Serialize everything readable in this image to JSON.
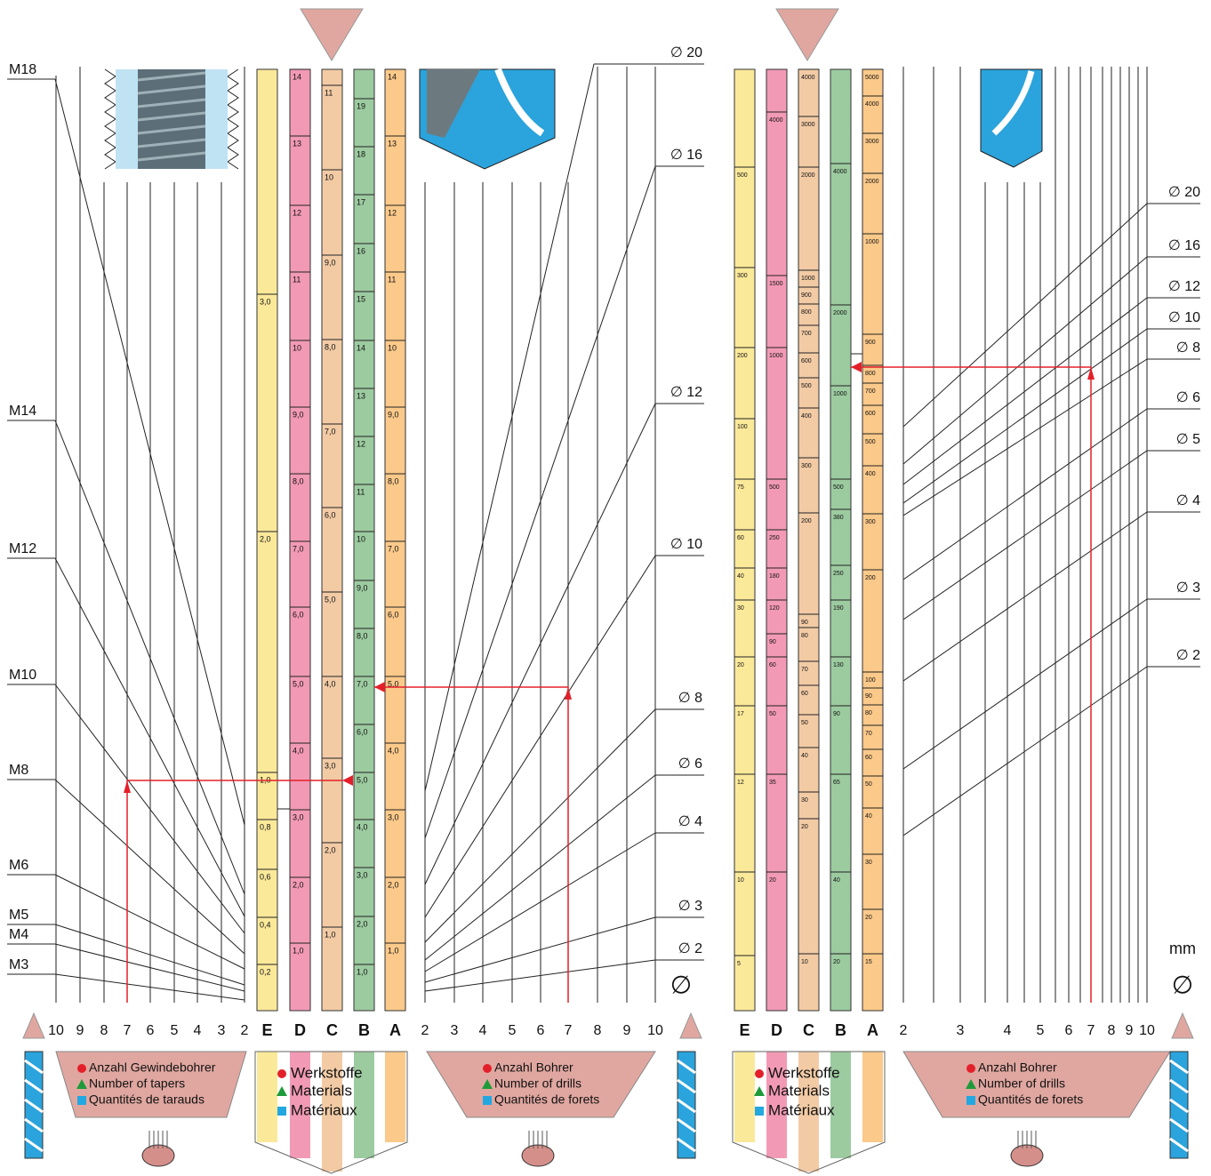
{
  "left": {
    "threads": [
      "M18",
      "M14",
      "M12",
      "M10",
      "M8",
      "M6",
      "M5",
      "M4",
      "M3"
    ],
    "scale_left": [
      "10",
      "9",
      "8",
      "7",
      "6",
      "5",
      "4",
      "3",
      "2"
    ],
    "columns": [
      {
        "letter": "E",
        "ticks": [
          "3,0",
          "2,0",
          "1,0",
          "0,8",
          "0,6",
          "0,4",
          "0,2"
        ]
      },
      {
        "letter": "D",
        "ticks": [
          "14",
          "13",
          "12",
          "11",
          "10",
          "9,0",
          "8,0",
          "7,0",
          "6,0",
          "5,0",
          "4,0",
          "3,0",
          "2,0",
          "1,0"
        ]
      },
      {
        "letter": "C",
        "ticks": [
          "11",
          "10",
          "9,0",
          "8,0",
          "7,0",
          "6,0",
          "5,0",
          "4,0",
          "3,0",
          "2,0",
          "1,0"
        ]
      },
      {
        "letter": "B",
        "ticks": [
          "19",
          "18",
          "17",
          "16",
          "15",
          "14",
          "13",
          "12",
          "11",
          "10",
          "9,0",
          "8,0",
          "7,0",
          "6,0",
          "5,0",
          "4,0",
          "3,0",
          "2,0",
          "1,0"
        ]
      },
      {
        "letter": "A",
        "ticks": [
          "14",
          "13",
          "12",
          "11",
          "10",
          "9,0",
          "8,0",
          "7,0",
          "6,0",
          "5,0",
          "4,0",
          "3,0",
          "2,0",
          "1,0"
        ]
      }
    ],
    "drills": [
      "∅ 20",
      "∅ 16",
      "∅ 12",
      "∅ 10",
      "∅ 8",
      "∅ 6",
      "∅ 4",
      "∅ 3",
      "∅ 2"
    ],
    "scale_right": [
      "2",
      "3",
      "4",
      "5",
      "6",
      "7",
      "8",
      "9",
      "10"
    ],
    "diameter_symbol": "∅"
  },
  "right": {
    "columns": [
      {
        "letter": "E",
        "ticks": [
          "500",
          "300",
          "200",
          "100",
          "75",
          "60",
          "40",
          "30",
          "20",
          "17",
          "12",
          "10",
          "5"
        ]
      },
      {
        "letter": "D",
        "ticks": [
          "4000",
          "1500",
          "1000",
          "500",
          "250",
          "180",
          "120",
          "90",
          "60",
          "50",
          "35",
          "20"
        ]
      },
      {
        "letter": "C",
        "ticks": [
          "4000",
          "3000",
          "2000",
          "1000",
          "900",
          "800",
          "700",
          "600",
          "500",
          "400",
          "300",
          "200",
          "90",
          "80",
          "70",
          "60",
          "50",
          "40",
          "30",
          "20",
          "10"
        ]
      },
      {
        "letter": "B",
        "ticks": [
          "4000",
          "2000",
          "1000",
          "500",
          "380",
          "250",
          "190",
          "130",
          "90",
          "65",
          "40",
          "20"
        ]
      },
      {
        "letter": "A",
        "ticks": [
          "5000",
          "4000",
          "3000",
          "2000",
          "1000",
          "900",
          "800",
          "700",
          "600",
          "500",
          "400",
          "300",
          "200",
          "100",
          "90",
          "80",
          "70",
          "60",
          "50",
          "40",
          "30",
          "20",
          "15"
        ]
      }
    ],
    "drills": [
      "∅ 20",
      "∅ 16",
      "∅ 12",
      "∅ 10",
      "∅ 8",
      "∅ 6",
      "∅ 5",
      "∅ 4",
      "∅ 3",
      "∅ 2"
    ],
    "scale": [
      "2",
      "3",
      "4",
      "5",
      "6",
      "7",
      "8",
      "9",
      "10"
    ],
    "unit": "mm",
    "diameter_symbol": "∅"
  },
  "legends": {
    "tapers": [
      "Anzahl Gewindebohrer",
      "Number of tapers",
      "Quantités de tarauds"
    ],
    "materials_left": [
      "Werkstoffe",
      "Materials",
      "Matériaux"
    ],
    "drills_left": [
      "Anzahl Bohrer",
      "Number of drills",
      "Quantités de forets"
    ],
    "materials_right": [
      "Werkstoffe",
      "Materials",
      "Matériaux"
    ],
    "drills_right": [
      "Anzahl Bohrer",
      "Number of drills",
      "Quantités de forets"
    ]
  }
}
